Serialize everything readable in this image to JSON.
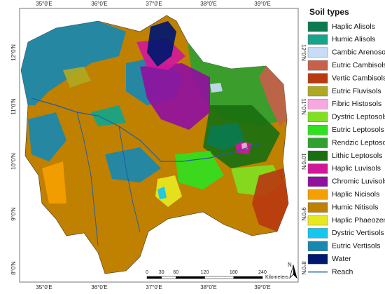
{
  "map": {
    "top_labels": [
      "35°0'E",
      "36°0'E",
      "37°0'E",
      "38°0'E",
      "39°0'E"
    ],
    "bottom_labels": [
      "35°0'E",
      "36°0'E",
      "37°0'E",
      "38°0'E",
      "39°0'E"
    ],
    "left_labels": [
      "12°0'N",
      "11°0'N",
      "10°0'N",
      "9°0'N",
      "8°0'N"
    ],
    "right_labels": [
      "12°0'N",
      "11°0'N",
      "10°0'N",
      "9°0'N",
      "8°0'N"
    ],
    "legend": {
      "title": "Soil types",
      "items": [
        {
          "label": "Haplic Alisols",
          "color": "#0a7a50"
        },
        {
          "label": "Humic Alisols",
          "color": "#14a58a"
        },
        {
          "label": "Cambic Arenosols",
          "color": "#c8dcf5"
        },
        {
          "label": "Eutric Cambisols",
          "color": "#c8604a"
        },
        {
          "label": "Vertic Cambisols",
          "color": "#b83a10"
        },
        {
          "label": "Eutric Fluvisols",
          "color": "#b0a820"
        },
        {
          "label": "Fibric Histosols",
          "color": "#f7a8e0"
        },
        {
          "label": "Dystric Leptosols",
          "color": "#80e020"
        },
        {
          "label": "Eutric Leptosols",
          "color": "#30e020"
        },
        {
          "label": "Rendzic Leptosols",
          "color": "#30a030"
        },
        {
          "label": "Lithic Leptosols",
          "color": "#1a7010"
        },
        {
          "label": "Haplic Luvisols",
          "color": "#d01898"
        },
        {
          "label": "Chromic Luvisols",
          "color": "#9010a0"
        },
        {
          "label": "Haplic Nicisols",
          "color": "#f5a000"
        },
        {
          "label": "Humic Nitisols",
          "color": "#c08000"
        },
        {
          "label": "Haplic Phaeozems",
          "color": "#e8e820"
        },
        {
          "label": "Dystric Vertisols",
          "color": "#10c8f0"
        },
        {
          "label": "Eutric Vertisols",
          "color": "#1888b0"
        },
        {
          "label": "Water",
          "color": "#001870"
        }
      ],
      "reach": {
        "label": "Reach",
        "color": "#2060a0"
      }
    },
    "scale_bar": {
      "ticks": [
        0,
        30,
        60,
        120,
        180,
        240
      ],
      "unit": "Kilometers"
    },
    "north": "N"
  }
}
